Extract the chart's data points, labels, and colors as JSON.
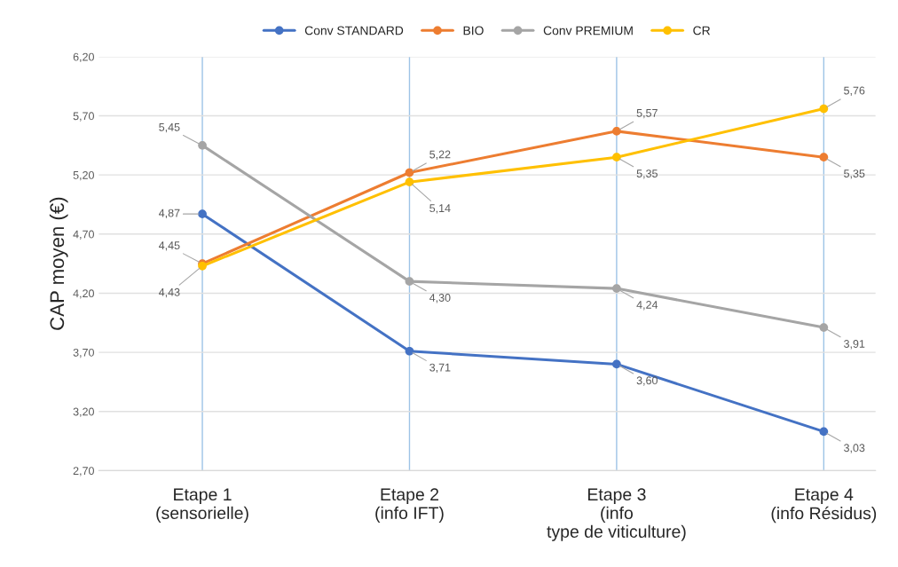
{
  "chart_data": {
    "type": "line",
    "categories": [
      "Etape 1\n(sensorielle)",
      "Etape 2\n(info IFT)",
      "Etape 3\n(info\ntype de viticulture)",
      "Etape 4\n(info Résidus)"
    ],
    "ylabel": "CAP moyen (€)",
    "ylim": [
      2.7,
      6.2
    ],
    "yticks": [
      {
        "value": 2.7,
        "label": "2,70"
      },
      {
        "value": 3.2,
        "label": "3,20"
      },
      {
        "value": 3.7,
        "label": "3,70"
      },
      {
        "value": 4.2,
        "label": "4,20"
      },
      {
        "value": 4.7,
        "label": "4,70"
      },
      {
        "value": 5.2,
        "label": "5,20"
      },
      {
        "value": 5.7,
        "label": "5,70"
      },
      {
        "value": 6.2,
        "label": "6,20"
      }
    ],
    "series": [
      {
        "name": "Conv STANDARD",
        "color": "#4472c4",
        "values": [
          4.87,
          3.71,
          3.6,
          3.03
        ],
        "value_labels": [
          "4,87",
          "3,71",
          "3,60",
          "3,03"
        ]
      },
      {
        "name": "BIO",
        "color": "#ed7d31",
        "values": [
          4.45,
          5.22,
          5.57,
          5.35
        ],
        "value_labels": [
          "4,45",
          "5,22",
          "5,57",
          "5,35"
        ]
      },
      {
        "name": "Conv PREMIUM",
        "color": "#a5a5a5",
        "values": [
          5.45,
          4.3,
          4.24,
          3.91
        ],
        "value_labels": [
          "5,45",
          "4,30",
          "4,24",
          "3,91"
        ]
      },
      {
        "name": "CR",
        "color": "#ffc000",
        "values": [
          4.43,
          5.14,
          5.35,
          5.76
        ],
        "value_labels": [
          "4,43",
          "5,14",
          "5,35",
          "5,76"
        ]
      }
    ],
    "marker": "circle",
    "line_style": "solid",
    "grid": true,
    "legend": "top"
  }
}
